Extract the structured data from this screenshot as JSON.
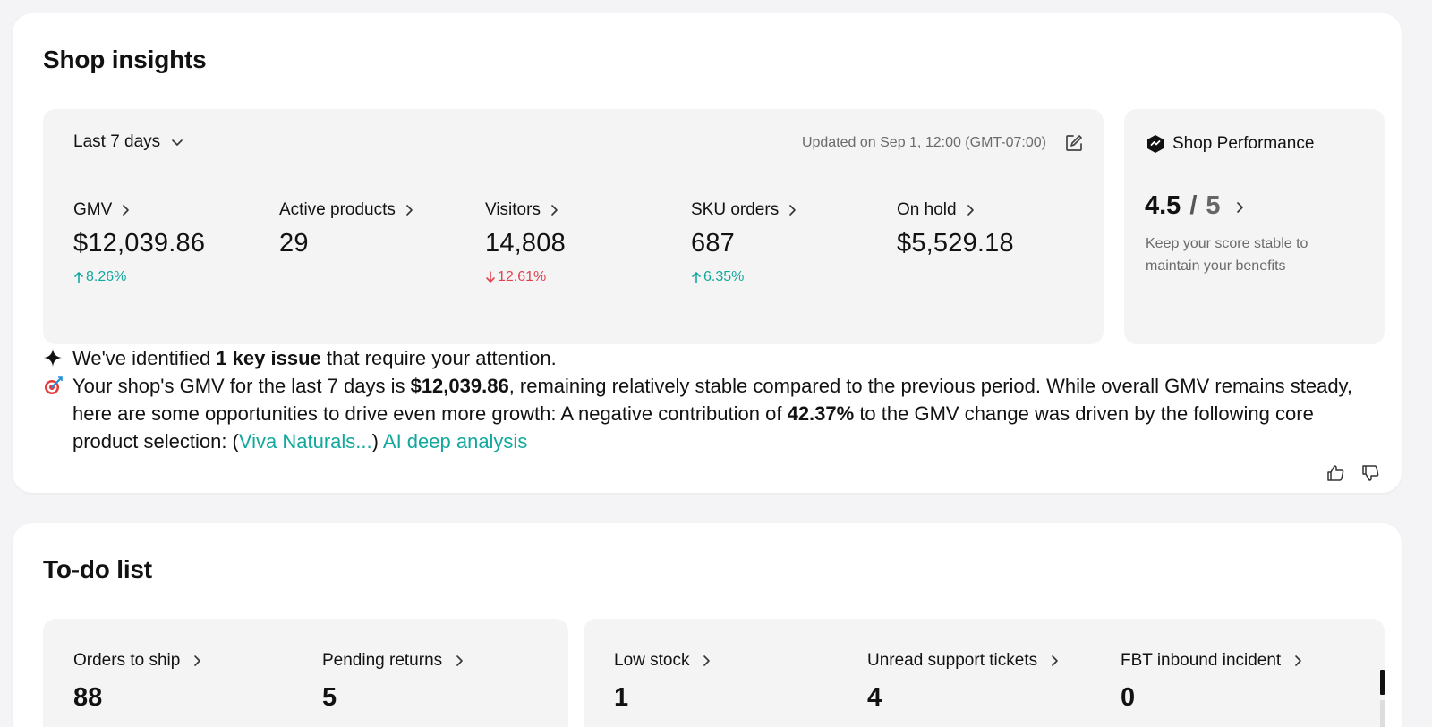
{
  "insights": {
    "title": "Shop insights",
    "range_label": "Last 7 days",
    "updated_text": "Updated on Sep 1, 12:00 (GMT-07:00)",
    "metrics": [
      {
        "label": "GMV",
        "value": "$12,039.86",
        "change": "8.26%",
        "direction": "up"
      },
      {
        "label": "Active products",
        "value": "29",
        "change": "",
        "direction": ""
      },
      {
        "label": "Visitors",
        "value": "14,808",
        "change": "12.61%",
        "direction": "down"
      },
      {
        "label": "SKU orders",
        "value": "687",
        "change": "6.35%",
        "direction": "up"
      },
      {
        "label": "On hold",
        "value": "$5,529.18",
        "change": "",
        "direction": ""
      }
    ],
    "performance": {
      "title": "Shop Performance",
      "score": "4.5",
      "separator": "/",
      "max": "5",
      "note": "Keep your score stable to maintain your benefits"
    },
    "issue": {
      "prefix": "We've identified ",
      "highlight": "1 key issue",
      "suffix": " that require your attention."
    },
    "analysis": {
      "part1": "Your shop's GMV for the last 7 days is ",
      "gmv": "$12,039.86",
      "part2": ", remaining relatively stable compared to the previous period. While overall GMV remains steady, here are some opportunities to drive even more growth: A negative contribution of ",
      "pct": "42.37%",
      "part3": " to the GMV change was driven by the following core product selection: (",
      "product_link": "Viva Naturals...",
      "part4": ") ",
      "deep_link": "AI deep analysis"
    }
  },
  "todo": {
    "title": "To-do list",
    "left_items": [
      {
        "label": "Orders to ship",
        "value": "88"
      },
      {
        "label": "Pending returns",
        "value": "5"
      }
    ],
    "right_items": [
      {
        "label": "Low stock",
        "value": "1"
      },
      {
        "label": "Unread support tickets",
        "value": "4"
      },
      {
        "label": "FBT inbound incident",
        "value": "0"
      }
    ]
  },
  "colors": {
    "accent": "#13a89e",
    "negative": "#e0424f",
    "panel_bg": "#f4f4f4"
  },
  "icons": [
    "chevron-down-icon",
    "edit-icon",
    "chevron-right-icon",
    "arrow-up-icon",
    "arrow-down-icon",
    "shield-check-icon",
    "sparkle-icon",
    "target-icon",
    "thumbs-up-icon",
    "thumbs-down-icon"
  ]
}
